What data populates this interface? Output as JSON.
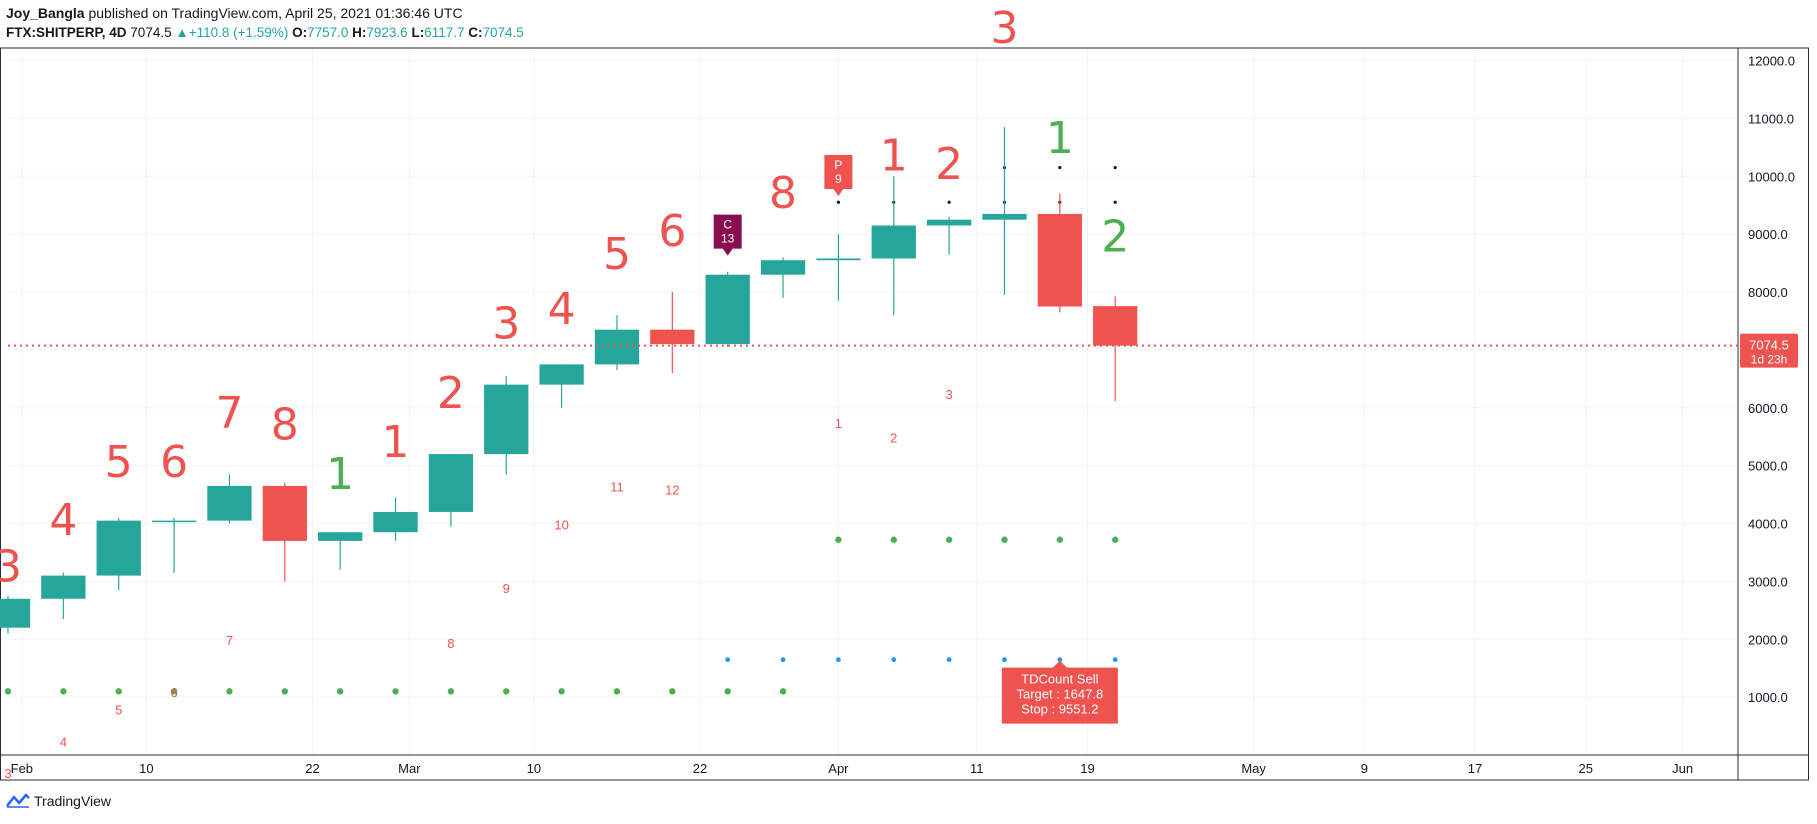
{
  "header": {
    "author": "Joy_Bangla",
    "published_text": "published on TradingView.com, April 25, 2021 01:36:46 UTC",
    "symbol": "FTX:SHITPERP, 4D",
    "last": "7074.5",
    "change": "+110.8 (+1.59%)",
    "open_label": "O:",
    "open": "7757.0",
    "high_label": "H:",
    "high": "7923.6",
    "low_label": "L:",
    "low": "6117.7",
    "close_label": "C:",
    "close": "7074.5"
  },
  "footer": {
    "brand": "TradingView"
  },
  "colors": {
    "up": "#26a69a",
    "down": "#ef5350",
    "setup_green": "#4caf50",
    "blue_dot": "#2196f3",
    "maroon": "#880e4f"
  },
  "chart_data": {
    "type": "candlestick",
    "timeframe": "4D",
    "ylim": [
      0,
      12200
    ],
    "xlim": [
      "2021-01-31",
      "2021-06-05"
    ],
    "grid": true,
    "y_ticks": [
      "1000.0",
      "2000.0",
      "3000.0",
      "4000.0",
      "5000.0",
      "6000.0",
      "7000.0",
      "8000.0",
      "9000.0",
      "10000.0",
      "11000.0",
      "12000.0"
    ],
    "x_ticks": [
      {
        "date": "2021-02-01",
        "label": "Feb"
      },
      {
        "date": "2021-02-10",
        "label": "10"
      },
      {
        "date": "2021-02-22",
        "label": "22"
      },
      {
        "date": "2021-03-01",
        "label": "Mar"
      },
      {
        "date": "2021-03-10",
        "label": "10"
      },
      {
        "date": "2021-03-22",
        "label": "22"
      },
      {
        "date": "2021-04-01",
        "label": "Apr"
      },
      {
        "date": "2021-04-11",
        "label": "11"
      },
      {
        "date": "2021-04-19",
        "label": "19"
      },
      {
        "date": "2021-05-01",
        "label": "May"
      },
      {
        "date": "2021-05-09",
        "label": "9"
      },
      {
        "date": "2021-05-17",
        "label": "17"
      },
      {
        "date": "2021-05-25",
        "label": "25"
      },
      {
        "date": "2021-06-01",
        "label": "Jun"
      }
    ],
    "candles": [
      {
        "date": "2021-01-31",
        "open": 2200,
        "high": 2750,
        "low": 2100,
        "close": 2700
      },
      {
        "date": "2021-02-04",
        "open": 2700,
        "high": 3150,
        "low": 2350,
        "close": 3100
      },
      {
        "date": "2021-02-08",
        "open": 3100,
        "high": 4100,
        "low": 2850,
        "close": 4050
      },
      {
        "date": "2021-02-12",
        "open": 4050,
        "high": 4100,
        "low": 3150,
        "close": 4050
      },
      {
        "date": "2021-02-16",
        "open": 4050,
        "high": 4850,
        "low": 4000,
        "close": 4650
      },
      {
        "date": "2021-02-20",
        "open": 4650,
        "high": 4700,
        "low": 3000,
        "close": 3700
      },
      {
        "date": "2021-02-24",
        "open": 3700,
        "high": 3850,
        "low": 3200,
        "close": 3850
      },
      {
        "date": "2021-02-28",
        "open": 3850,
        "high": 4450,
        "low": 3700,
        "close": 4200
      },
      {
        "date": "2021-03-04",
        "open": 4200,
        "high": 5200,
        "low": 3950,
        "close": 5200
      },
      {
        "date": "2021-03-08",
        "open": 5200,
        "high": 6550,
        "low": 4850,
        "close": 6400
      },
      {
        "date": "2021-03-12",
        "open": 6400,
        "high": 6750,
        "low": 6000,
        "close": 6750
      },
      {
        "date": "2021-03-16",
        "open": 6750,
        "high": 7600,
        "low": 6650,
        "close": 7350
      },
      {
        "date": "2021-03-20",
        "open": 7350,
        "high": 8000,
        "low": 6600,
        "close": 7100
      },
      {
        "date": "2021-03-24",
        "open": 7100,
        "high": 8350,
        "low": 7050,
        "close": 8300
      },
      {
        "date": "2021-03-28",
        "open": 8300,
        "high": 8600,
        "low": 7900,
        "close": 8550
      },
      {
        "date": "2021-04-01",
        "open": 8550,
        "high": 9000,
        "low": 7850,
        "close": 8580
      },
      {
        "date": "2021-04-05",
        "open": 8580,
        "high": 10000,
        "low": 7600,
        "close": 9150
      },
      {
        "date": "2021-04-09",
        "open": 9150,
        "high": 9300,
        "low": 8650,
        "close": 9250
      },
      {
        "date": "2021-04-13",
        "open": 9250,
        "high": 10850,
        "low": 7950,
        "close": 9350
      },
      {
        "date": "2021-04-17",
        "open": 9350,
        "high": 9700,
        "low": 7650,
        "close": 7750
      },
      {
        "date": "2021-04-21",
        "open": 7757,
        "high": 7923.6,
        "low": 6117.7,
        "close": 7074.5
      }
    ],
    "last_price": {
      "value": 7074.5,
      "label": "7074.5",
      "countdown": "1d 23h"
    },
    "setup_labels": [
      {
        "date": "2021-01-31",
        "text": "3",
        "color": "red",
        "price": 3000
      },
      {
        "date": "2021-02-04",
        "text": "4",
        "color": "red",
        "price": 3800
      },
      {
        "date": "2021-02-08",
        "text": "5",
        "color": "red",
        "price": 4800
      },
      {
        "date": "2021-02-12",
        "text": "6",
        "color": "red",
        "price": 4800
      },
      {
        "date": "2021-02-16",
        "text": "7",
        "color": "red",
        "price": 5650
      },
      {
        "date": "2021-02-20",
        "text": "8",
        "color": "red",
        "price": 5450
      },
      {
        "date": "2021-02-24",
        "text": "1",
        "color": "green",
        "price": 4600
      },
      {
        "date": "2021-02-28",
        "text": "1",
        "color": "red",
        "price": 5150
      },
      {
        "date": "2021-03-04",
        "text": "2",
        "color": "red",
        "price": 6000
      },
      {
        "date": "2021-03-08",
        "text": "3",
        "color": "red",
        "price": 7200
      },
      {
        "date": "2021-03-12",
        "text": "4",
        "color": "red",
        "price": 7450
      },
      {
        "date": "2021-03-16",
        "text": "5",
        "color": "red",
        "price": 8400
      },
      {
        "date": "2021-03-20",
        "text": "6",
        "color": "red",
        "price": 8800
      },
      {
        "date": "2021-03-28",
        "text": "8",
        "color": "red",
        "price": 9450
      },
      {
        "date": "2021-04-05",
        "text": "1",
        "color": "red",
        "price": 10100
      },
      {
        "date": "2021-04-09",
        "text": "2",
        "color": "red",
        "price": 9950
      },
      {
        "date": "2021-04-13",
        "text": "3",
        "color": "red",
        "price": 12300
      },
      {
        "date": "2021-04-17",
        "text": "1",
        "color": "green",
        "price": 10400
      },
      {
        "date": "2021-04-21",
        "text": "2",
        "color": "green",
        "price": 8700
      }
    ],
    "countdown_labels": [
      {
        "date": "2021-01-31",
        "text": "3",
        "price": -400
      },
      {
        "date": "2021-02-04",
        "text": "4",
        "price": 150
      },
      {
        "date": "2021-02-08",
        "text": "5",
        "price": 700
      },
      {
        "date": "2021-02-12",
        "text": "6",
        "price": 1000
      },
      {
        "date": "2021-02-16",
        "text": "7",
        "price": 1900
      },
      {
        "date": "2021-03-04",
        "text": "8",
        "price": 1850
      },
      {
        "date": "2021-03-08",
        "text": "9",
        "price": 2800
      },
      {
        "date": "2021-03-12",
        "text": "10",
        "price": 3900
      },
      {
        "date": "2021-03-16",
        "text": "11",
        "price": 4550
      },
      {
        "date": "2021-03-20",
        "text": "12",
        "price": 4500
      },
      {
        "date": "2021-04-01",
        "text": "1",
        "price": 5650
      },
      {
        "date": "2021-04-05",
        "text": "2",
        "price": 5400
      },
      {
        "date": "2021-04-09",
        "text": "3",
        "price": 6150
      }
    ],
    "markers": [
      {
        "date": "2021-03-24",
        "line1": "C",
        "line2": "13",
        "price": 8750,
        "color": "maroon"
      },
      {
        "date": "2021-04-01",
        "line1": "P",
        "line2": "9",
        "price": 9780,
        "color": "red"
      }
    ],
    "green_dots_low": {
      "price": 1100,
      "dates": [
        "2021-01-31",
        "2021-02-04",
        "2021-02-08",
        "2021-02-12",
        "2021-02-16",
        "2021-02-20",
        "2021-02-24",
        "2021-02-28",
        "2021-03-04",
        "2021-03-08",
        "2021-03-12",
        "2021-03-16",
        "2021-03-20",
        "2021-03-24",
        "2021-03-28"
      ]
    },
    "green_dots_high": {
      "price": 3720,
      "dates": [
        "2021-04-01",
        "2021-04-05",
        "2021-04-09",
        "2021-04-13",
        "2021-04-17",
        "2021-04-21"
      ]
    },
    "blue_dots": {
      "price": 1647.8,
      "dates": [
        "2021-03-24",
        "2021-03-28",
        "2021-04-01",
        "2021-04-05",
        "2021-04-09",
        "2021-04-13",
        "2021-04-17",
        "2021-04-21"
      ]
    },
    "black_dots": [
      {
        "price": 9551.2,
        "dates": [
          "2021-04-01",
          "2021-04-05",
          "2021-04-09",
          "2021-04-13",
          "2021-04-17",
          "2021-04-21"
        ]
      },
      {
        "price": 10150,
        "dates": [
          "2021-04-05",
          "2021-04-13",
          "2021-04-17",
          "2021-04-21"
        ]
      }
    ],
    "tdcount_box": {
      "date": "2021-04-17",
      "price": 1647.8,
      "title": "TDCount Sell",
      "target": "Target : 1647.8",
      "stop": "Stop : 9551.2"
    }
  }
}
